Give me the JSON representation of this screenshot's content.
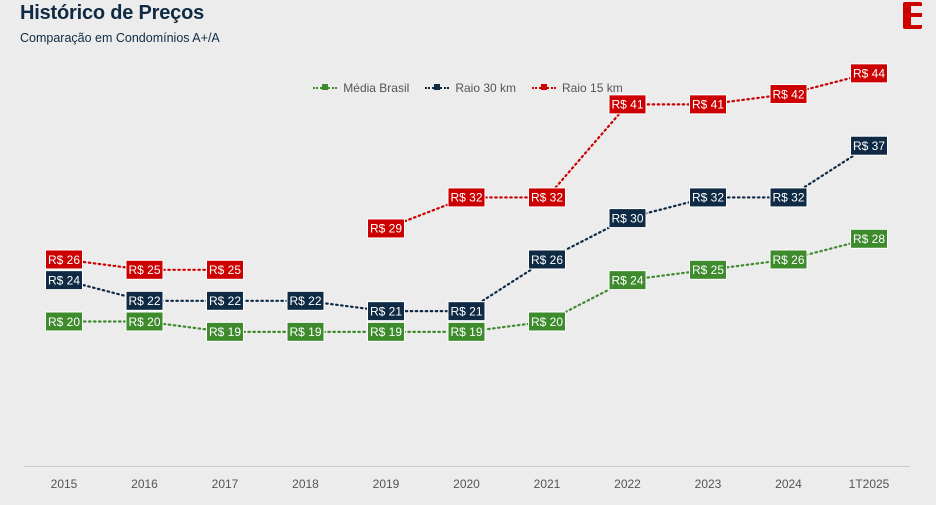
{
  "header": {
    "title": "Histórico de Preços",
    "subtitle": "Comparação em Condomínios A+/A",
    "logo": "brand-logo-icon"
  },
  "colors": {
    "background": "#ececec",
    "title": "#0f2a44",
    "media_brasil": "#3d8b2d",
    "raio_30": "#0f2a44",
    "raio_15": "#cc0000",
    "axis": "#cccccc",
    "tick_text": "#555555"
  },
  "chart_data": {
    "type": "line",
    "title": "Histórico de Preços",
    "subtitle": "Comparação em Condomínios A+/A",
    "xlabel": "",
    "ylabel": "",
    "categories": [
      "2015",
      "2016",
      "2017",
      "2018",
      "2019",
      "2020",
      "2021",
      "2022",
      "2023",
      "2024",
      "1T2025"
    ],
    "label_prefix": "R$",
    "legend_position": "top-center",
    "grid": false,
    "ylim": [
      0,
      55
    ],
    "series": [
      {
        "name": "Média Brasil",
        "color": "#3d8b2d",
        "values": [
          20,
          20,
          19,
          19,
          19,
          19,
          20,
          24,
          25,
          26,
          28
        ]
      },
      {
        "name": "Raio 30 km",
        "color": "#0f2a44",
        "values": [
          24,
          22,
          22,
          22,
          21,
          21,
          26,
          30,
          32,
          32,
          37
        ]
      },
      {
        "name": "Raio 15 km",
        "color": "#cc0000",
        "values": [
          26,
          25,
          25,
          null,
          29,
          32,
          32,
          41,
          41,
          42,
          44
        ]
      }
    ]
  }
}
